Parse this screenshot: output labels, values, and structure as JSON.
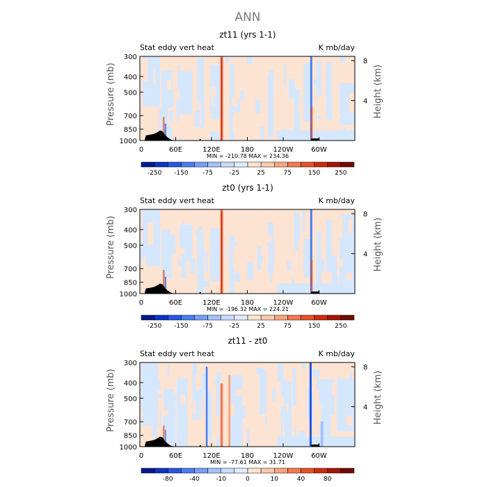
{
  "figure": {
    "title": "ANN"
  },
  "chart_data": [
    {
      "type": "heatmap",
      "title": "zt11 (yrs 1-1)",
      "subtitle_left": "Stat eddy vert heat",
      "subtitle_right": "K mb/day",
      "ylabel": "Pressure (mb)",
      "ylabel_right": "Height (km)",
      "x_ticks": [
        "0",
        "60E",
        "120E",
        "180",
        "120W",
        "60W"
      ],
      "y_ticks": [
        "300",
        "400",
        "500",
        "700",
        "850",
        "1000"
      ],
      "y_right_ticks": [
        "8",
        "4"
      ],
      "stats": "MIN = -210.78   MAX = 234.36",
      "colorbar_labels": [
        "-250",
        "-150",
        "-75",
        "-25",
        "25",
        "75",
        "150",
        "250"
      ],
      "colorbar_colors": [
        "#061a8c",
        "#0d33c4",
        "#2456e0",
        "#4a7ef0",
        "#779ff7",
        "#a3c1fb",
        "#c9dcfd",
        "#e0edfe",
        "#fde3d2",
        "#fbc9ae",
        "#f8a47f",
        "#f37950",
        "#e85127",
        "#cc2c0c",
        "#a3160a",
        "#6f0c07"
      ]
    },
    {
      "type": "heatmap",
      "title": "zt0 (yrs 1-1)",
      "subtitle_left": "Stat eddy vert heat",
      "subtitle_right": "K mb/day",
      "ylabel": "Pressure (mb)",
      "ylabel_right": "Height (km)",
      "x_ticks": [
        "0",
        "60E",
        "120E",
        "180",
        "120W",
        "60W"
      ],
      "y_ticks": [
        "300",
        "400",
        "500",
        "700",
        "850",
        "1000"
      ],
      "y_right_ticks": [
        "8",
        "4"
      ],
      "stats": "MIN = -196.32   MAX = 224.21",
      "colorbar_labels": [
        "-250",
        "-150",
        "-75",
        "-25",
        "25",
        "75",
        "150",
        "250"
      ],
      "colorbar_colors": [
        "#061a8c",
        "#0d33c4",
        "#2456e0",
        "#4a7ef0",
        "#779ff7",
        "#a3c1fb",
        "#c9dcfd",
        "#e0edfe",
        "#fde3d2",
        "#fbc9ae",
        "#f8a47f",
        "#f37950",
        "#e85127",
        "#cc2c0c",
        "#a3160a",
        "#6f0c07"
      ]
    },
    {
      "type": "heatmap",
      "title": "zt11 - zt0",
      "subtitle_left": "Stat eddy vert heat",
      "subtitle_right": "K mb/day",
      "ylabel": "Pressure (mb)",
      "ylabel_right": "Height (km)",
      "x_ticks": [
        "0",
        "60E",
        "120E",
        "180",
        "120W",
        "60W"
      ],
      "y_ticks": [
        "300",
        "400",
        "500",
        "700",
        "850",
        "1000"
      ],
      "y_right_ticks": [
        "8",
        "4"
      ],
      "stats": "MIN = -77.61   MAX =  31.71",
      "colorbar_labels": [
        "-80",
        "-40",
        "-10",
        "0",
        "10",
        "40",
        "80"
      ],
      "colorbar_colors": [
        "#061a8c",
        "#0d33c4",
        "#2456e0",
        "#4a7ef0",
        "#779ff7",
        "#a3c1fb",
        "#c9dcfd",
        "#e0edfe",
        "#fde3d2",
        "#fbc9ae",
        "#f8a47f",
        "#f37950",
        "#e85127",
        "#cc2c0c",
        "#a3160a",
        "#6f0c07"
      ]
    }
  ]
}
